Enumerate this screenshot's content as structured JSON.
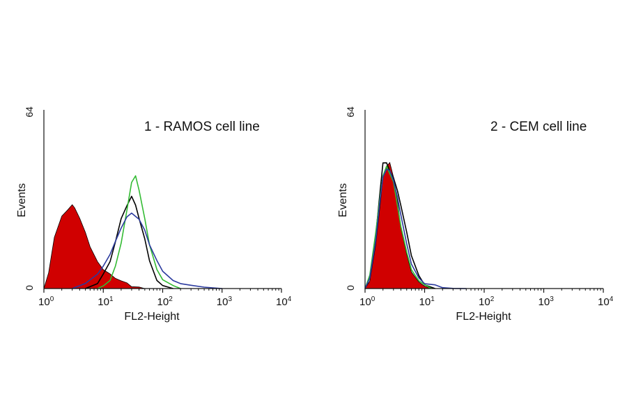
{
  "chart_data": [
    {
      "type": "area",
      "title": "1 - RAMOS cell line",
      "xlabel": "FL2-Height",
      "ylabel": "Events",
      "x_scale": "log",
      "xlim": [
        1,
        10000
      ],
      "ylim": [
        0,
        64
      ],
      "x_ticks": [
        {
          "base": "10",
          "exp": "0"
        },
        {
          "base": "10",
          "exp": "1"
        },
        {
          "base": "10",
          "exp": "2"
        },
        {
          "base": "10",
          "exp": "3"
        },
        {
          "base": "10",
          "exp": "4"
        }
      ],
      "y_ticks": [
        "0",
        "64"
      ],
      "series": [
        {
          "color": "#d00000",
          "style": "filled",
          "x": [
            1,
            1.2,
            1.5,
            2,
            2.5,
            3,
            3.3,
            4,
            5,
            6,
            8,
            10,
            13,
            16,
            20,
            25,
            30,
            40,
            50
          ],
          "y": [
            0,
            6,
            18,
            26,
            28,
            30,
            29,
            25,
            20,
            15,
            10,
            7,
            5,
            4,
            3,
            2,
            1,
            0.5,
            0
          ]
        },
        {
          "color": "#000000",
          "style": "line",
          "x": [
            5,
            8,
            10,
            13,
            16,
            20,
            25,
            30,
            35,
            40,
            50,
            60,
            80,
            100,
            150
          ],
          "y": [
            0,
            2,
            5,
            10,
            17,
            25,
            30,
            33,
            30,
            25,
            18,
            10,
            3,
            1,
            0
          ]
        },
        {
          "color": "#33bb33",
          "style": "line",
          "x": [
            8,
            10,
            13,
            16,
            20,
            25,
            30,
            35,
            40,
            50,
            60,
            80,
            100,
            150,
            200
          ],
          "y": [
            0,
            1,
            3,
            8,
            16,
            28,
            38,
            40,
            35,
            25,
            16,
            7,
            3,
            1,
            0
          ]
        },
        {
          "color": "#2b3a9e",
          "style": "line",
          "x": [
            3,
            5,
            8,
            10,
            13,
            16,
            20,
            25,
            30,
            40,
            50,
            60,
            80,
            100,
            150,
            200,
            300,
            500,
            1000
          ],
          "y": [
            0,
            2,
            5,
            8,
            12,
            17,
            22,
            26,
            27,
            25,
            21,
            16,
            10,
            6,
            3,
            2,
            1,
            0.5,
            0
          ]
        }
      ]
    },
    {
      "type": "area",
      "title": "2 - CEM cell line",
      "xlabel": "FL2-Height",
      "ylabel": "Events",
      "x_scale": "log",
      "xlim": [
        1,
        10000
      ],
      "ylim": [
        0,
        64
      ],
      "x_ticks": [
        {
          "base": "10",
          "exp": "0"
        },
        {
          "base": "10",
          "exp": "1"
        },
        {
          "base": "10",
          "exp": "2"
        },
        {
          "base": "10",
          "exp": "3"
        },
        {
          "base": "10",
          "exp": "4"
        }
      ],
      "y_ticks": [
        "0",
        "64"
      ],
      "series": [
        {
          "color": "#d00000",
          "style": "filled",
          "x": [
            1,
            1.2,
            1.5,
            1.8,
            2,
            2.3,
            2.6,
            3,
            3.5,
            4,
            5,
            6,
            8,
            10,
            13
          ],
          "y": [
            0,
            3,
            15,
            30,
            40,
            44,
            45,
            40,
            32,
            22,
            12,
            6,
            2,
            0.5,
            0
          ]
        },
        {
          "color": "#000000",
          "style": "line",
          "x": [
            1,
            1.2,
            1.5,
            1.8,
            2,
            2.3,
            2.6,
            3,
            3.5,
            4,
            5,
            6,
            8,
            10,
            15
          ],
          "y": [
            0,
            4,
            18,
            35,
            45,
            45,
            42,
            40,
            35,
            30,
            20,
            12,
            5,
            1,
            0
          ]
        },
        {
          "color": "#33bb33",
          "style": "line",
          "x": [
            1,
            1.2,
            1.5,
            1.8,
            2,
            2.3,
            2.6,
            3,
            3.5,
            4,
            5,
            6,
            8,
            10,
            13
          ],
          "y": [
            0,
            5,
            20,
            33,
            40,
            44,
            41,
            38,
            30,
            22,
            13,
            7,
            3,
            1,
            0
          ]
        },
        {
          "color": "#2b3a9e",
          "style": "line",
          "x": [
            1,
            1.2,
            1.5,
            1.8,
            2,
            2.3,
            2.6,
            3,
            3.5,
            4,
            5,
            6,
            8,
            10,
            15,
            20,
            30,
            50
          ],
          "y": [
            0,
            4,
            17,
            32,
            40,
            43,
            42,
            39,
            33,
            26,
            16,
            9,
            4,
            2,
            1,
            0.5,
            0.3,
            0
          ]
        }
      ]
    }
  ]
}
